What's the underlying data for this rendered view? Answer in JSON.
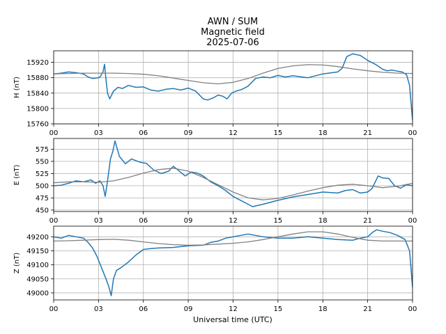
{
  "title_lines": [
    "AWN / SUM",
    "Magnetic field",
    "2025-07-06"
  ],
  "xlabel": "Universal time (UTC)",
  "chart_data": [
    {
      "type": "line",
      "ylabel": "H (nT)",
      "xlim": [
        0,
        24
      ],
      "ylim": [
        15760,
        15950
      ],
      "xticks": [
        "00",
        "03",
        "06",
        "09",
        "12",
        "15",
        "18",
        "21",
        "00"
      ],
      "yticks": [
        15760,
        15800,
        15840,
        15880,
        15920
      ],
      "grid": true,
      "series": [
        {
          "color": "#1f77b4",
          "x": [
            0,
            0.5,
            1,
            1.5,
            2,
            2.3,
            2.6,
            3,
            3.1,
            3.3,
            3.4,
            3.5,
            3.6,
            3.75,
            4,
            4.3,
            4.6,
            5,
            5.5,
            6,
            6.5,
            7,
            7.5,
            8,
            8.5,
            9,
            9.5,
            10,
            10.3,
            10.7,
            11,
            11.3,
            11.6,
            11.9,
            12.2,
            12.6,
            13,
            13.5,
            14,
            14.5,
            15,
            15.5,
            16,
            17,
            18,
            19,
            19.3,
            19.6,
            20,
            20.5,
            21,
            21.5,
            22,
            22.3,
            22.6,
            23,
            23.3,
            23.6,
            23.8,
            24
          ],
          "values": [
            15890,
            15892,
            15895,
            15893,
            15890,
            15882,
            15878,
            15880,
            15882,
            15895,
            15915,
            15875,
            15840,
            15825,
            15845,
            15855,
            15852,
            15860,
            15855,
            15856,
            15848,
            15845,
            15850,
            15852,
            15848,
            15853,
            15845,
            15825,
            15822,
            15828,
            15835,
            15832,
            15825,
            15840,
            15845,
            15850,
            15858,
            15878,
            15882,
            15880,
            15886,
            15882,
            15885,
            15880,
            15890,
            15895,
            15905,
            15935,
            15942,
            15938,
            15925,
            15915,
            15902,
            15898,
            15900,
            15897,
            15895,
            15888,
            15860,
            15770
          ]
        },
        {
          "color": "#808080",
          "x": [
            0,
            1,
            2,
            3,
            4,
            5,
            6,
            7,
            8,
            9,
            10,
            11,
            12,
            13,
            14,
            15,
            16,
            17,
            18,
            19,
            20,
            21,
            22,
            23,
            24
          ],
          "values": [
            15890,
            15891,
            15892,
            15892,
            15892,
            15891,
            15889,
            15885,
            15879,
            15873,
            15867,
            15864,
            15868,
            15878,
            15892,
            15904,
            15911,
            15914,
            15913,
            15909,
            15903,
            15898,
            15894,
            15892,
            15891
          ]
        }
      ]
    },
    {
      "type": "line",
      "ylabel": "E (nT)",
      "xlim": [
        0,
        24
      ],
      "ylim": [
        447,
        597
      ],
      "xticks": [
        "00",
        "03",
        "06",
        "09",
        "12",
        "15",
        "18",
        "21",
        "00"
      ],
      "yticks": [
        450,
        475,
        500,
        525,
        550,
        575
      ],
      "grid": true,
      "series": [
        {
          "color": "#1f77b4",
          "x": [
            0,
            0.5,
            1,
            1.5,
            2,
            2.5,
            2.8,
            3.1,
            3.3,
            3.45,
            3.6,
            3.8,
            3.95,
            4.1,
            4.4,
            4.8,
            5.2,
            5.8,
            6.2,
            6.7,
            7.2,
            7.7,
            8,
            8.4,
            8.8,
            9.2,
            9.6,
            10,
            10.5,
            11,
            11.5,
            12,
            12.5,
            13,
            13.3,
            14,
            15,
            16,
            17,
            18,
            19,
            19.5,
            20,
            20.5,
            21,
            21.3,
            21.7,
            22,
            22.4,
            22.8,
            23.2,
            23.6,
            24
          ],
          "values": [
            500,
            501,
            505,
            510,
            508,
            512,
            505,
            510,
            500,
            478,
            510,
            555,
            570,
            592,
            560,
            545,
            555,
            548,
            546,
            532,
            525,
            530,
            540,
            530,
            520,
            528,
            526,
            520,
            508,
            500,
            490,
            478,
            470,
            462,
            457,
            462,
            470,
            477,
            482,
            487,
            485,
            490,
            492,
            485,
            487,
            495,
            520,
            516,
            515,
            500,
            495,
            502,
            500
          ]
        },
        {
          "color": "#808080",
          "x": [
            0,
            1,
            2,
            3,
            4,
            5,
            6,
            7,
            8,
            9,
            10,
            11,
            12,
            13,
            14,
            15,
            16,
            17,
            18,
            19,
            20,
            21,
            22,
            23,
            24
          ],
          "values": [
            506,
            508,
            508,
            507,
            510,
            517,
            526,
            533,
            536,
            530,
            517,
            502,
            487,
            475,
            471,
            474,
            481,
            489,
            496,
            501,
            503,
            500,
            496,
            499,
            505
          ]
        }
      ]
    },
    {
      "type": "line",
      "ylabel": "Z (nT)",
      "xlim": [
        0,
        24
      ],
      "ylim": [
        48975,
        49238
      ],
      "xticks": [
        "00",
        "03",
        "06",
        "09",
        "12",
        "15",
        "18",
        "21",
        "00"
      ],
      "yticks": [
        49000,
        49050,
        49100,
        49150,
        49200
      ],
      "grid": true,
      "series": [
        {
          "color": "#1f77b4",
          "x": [
            0,
            0.5,
            1,
            1.5,
            2,
            2.3,
            2.6,
            2.9,
            3.2,
            3.5,
            3.7,
            3.85,
            4,
            4.2,
            4.5,
            5,
            5.5,
            6,
            6.5,
            7,
            8,
            9,
            10,
            10.5,
            11,
            11.5,
            12,
            13,
            14,
            15,
            16,
            17,
            18,
            19,
            20,
            20.5,
            21,
            21.3,
            21.6,
            22,
            22.5,
            23,
            23.5,
            23.8,
            24
          ],
          "values": [
            49200,
            49195,
            49205,
            49200,
            49195,
            49180,
            49160,
            49130,
            49090,
            49050,
            49020,
            48990,
            49050,
            49080,
            49090,
            49110,
            49135,
            49155,
            49158,
            49160,
            49162,
            49168,
            49170,
            49180,
            49185,
            49195,
            49200,
            49210,
            49200,
            49195,
            49195,
            49200,
            49195,
            49190,
            49188,
            49195,
            49200,
            49215,
            49225,
            49220,
            49215,
            49205,
            49190,
            49150,
            49020
          ]
        },
        {
          "color": "#808080",
          "x": [
            0,
            1,
            2,
            3,
            4,
            5,
            6,
            7,
            8,
            9,
            10,
            11,
            12,
            13,
            14,
            15,
            16,
            17,
            18,
            19,
            20,
            21,
            22,
            23,
            24
          ],
          "values": [
            49185,
            49186,
            49188,
            49190,
            49191,
            49188,
            49182,
            49176,
            49172,
            49170,
            49171,
            49174,
            49177,
            49182,
            49190,
            49200,
            49210,
            49218,
            49218,
            49210,
            49198,
            49188,
            49185,
            49185,
            49185
          ]
        }
      ]
    }
  ]
}
